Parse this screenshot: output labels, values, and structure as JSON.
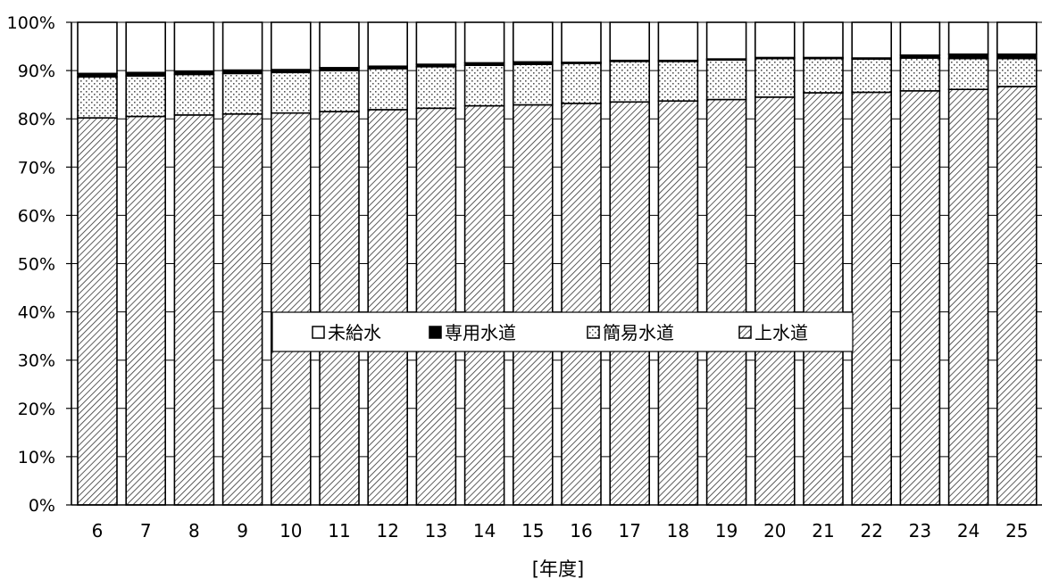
{
  "chart_data": {
    "type": "bar",
    "stacked": "percent",
    "title": "",
    "xlabel": "[年度]",
    "ylabel": "",
    "categories": [
      "6",
      "7",
      "8",
      "9",
      "10",
      "11",
      "12",
      "13",
      "14",
      "15",
      "16",
      "17",
      "18",
      "19",
      "20",
      "21",
      "22",
      "23",
      "24",
      "25"
    ],
    "ylim": [
      0,
      100
    ],
    "yticks": [
      "0%",
      "10%",
      "20%",
      "30%",
      "40%",
      "50%",
      "60%",
      "70%",
      "80%",
      "90%",
      "100%"
    ],
    "grid": true,
    "legend_position": "center",
    "series": [
      {
        "name": "上水道",
        "style": "diagonal-hatch",
        "values": [
          80.2,
          80.5,
          80.8,
          81.0,
          81.2,
          81.5,
          81.9,
          82.2,
          82.7,
          82.9,
          83.2,
          83.5,
          83.7,
          84.0,
          84.5,
          85.4,
          85.5,
          85.8,
          86.1,
          86.7
        ]
      },
      {
        "name": "簡易水道",
        "style": "dotted",
        "values": [
          8.5,
          8.4,
          8.4,
          8.4,
          8.4,
          8.5,
          8.5,
          8.6,
          8.4,
          8.4,
          8.3,
          8.4,
          8.2,
          8.2,
          8.0,
          7.1,
          6.9,
          6.8,
          6.4,
          5.8
        ]
      },
      {
        "name": "専用水道",
        "style": "solid-black",
        "values": [
          0.7,
          0.7,
          0.7,
          0.7,
          0.6,
          0.6,
          0.5,
          0.5,
          0.5,
          0.5,
          0.2,
          0.2,
          0.2,
          0.2,
          0.2,
          0.2,
          0.2,
          0.6,
          0.9,
          0.9
        ]
      },
      {
        "name": "未給水",
        "style": "white",
        "values": [
          10.6,
          10.4,
          10.1,
          9.9,
          9.8,
          9.4,
          9.1,
          8.7,
          8.4,
          8.2,
          8.3,
          7.9,
          7.9,
          7.6,
          7.3,
          7.3,
          7.4,
          6.8,
          6.6,
          6.6
        ]
      }
    ],
    "legend": [
      {
        "name": "未給水",
        "style": "white"
      },
      {
        "name": "専用水道",
        "style": "solid-black"
      },
      {
        "name": "簡易水道",
        "style": "dotted"
      },
      {
        "name": "上水道",
        "style": "diagonal-hatch"
      }
    ]
  }
}
